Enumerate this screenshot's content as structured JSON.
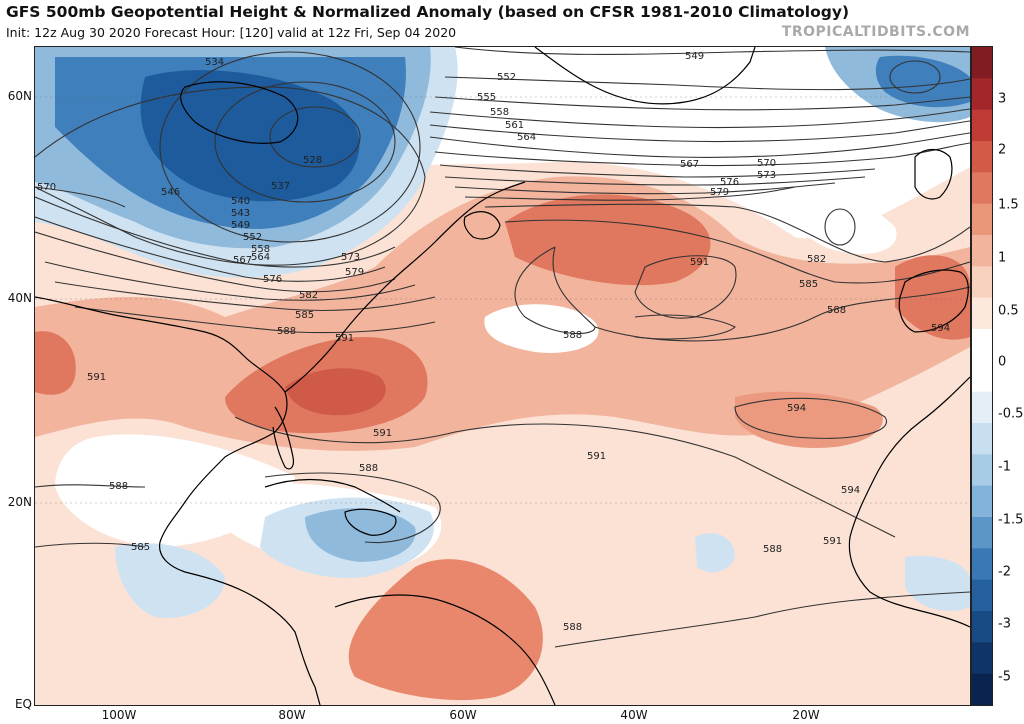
{
  "header": {
    "title": "GFS 500mb Geopotential Height & Normalized Anomaly (based on CFSR 1981-2010 Climatology)",
    "subtitle": "Init: 12z Aug 30 2020   Forecast Hour: [120]   valid at 12z Fri, Sep 04 2020",
    "credit": "TROPICALTIDBITS.COM"
  },
  "axes": {
    "lat_labels": [
      "60N",
      "40N",
      "20N",
      "EQ"
    ],
    "lon_labels": [
      "100W",
      "80W",
      "60W",
      "40W",
      "20W"
    ]
  },
  "colorbar": {
    "labels": [
      "3",
      "2",
      "1.5",
      "1",
      "0.5",
      "0",
      "-0.5",
      "-1",
      "-1.5",
      "-2",
      "-3",
      "-5"
    ],
    "colors_top_to_bottom": [
      "#7f1d22",
      "#a3262b",
      "#c03a36",
      "#d45a48",
      "#e0775f",
      "#ea9679",
      "#f2b49c",
      "#f8d1bf",
      "#fce8dc",
      "#ffffff",
      "#ffffff",
      "#e3eef6",
      "#c7dff0",
      "#a8cbe6",
      "#84b3da",
      "#5c96c9",
      "#3a78b5",
      "#245f9e",
      "#184a84",
      "#0f3568",
      "#0a2450"
    ]
  },
  "contours": {
    "labels": [
      "549",
      "552",
      "555",
      "558",
      "561",
      "564",
      "567",
      "570",
      "573",
      "576",
      "579",
      "582",
      "585",
      "588",
      "591",
      "594",
      "534",
      "528",
      "537",
      "540",
      "543",
      "546",
      "549",
      "552",
      "558",
      "564",
      "567",
      "570",
      "573",
      "576",
      "579",
      "582",
      "585",
      "588",
      "591",
      "591",
      "591",
      "588",
      "588",
      "591",
      "594",
      "594",
      "588",
      "588",
      "585",
      "591",
      "588"
    ]
  },
  "map_colors": {
    "ocean": "#ffffff",
    "positive_weak": "#fbe2d5",
    "positive_mid": "#f2b49c",
    "positive_strong": "#e0775f",
    "positive_max": "#cf5a48",
    "negative_weak": "#cfe2f1",
    "negative_mid": "#8fbadc",
    "negative_strong": "#3f7fbc",
    "negative_max": "#1d5b9d",
    "contour": "#333333",
    "coast": "#000000"
  }
}
